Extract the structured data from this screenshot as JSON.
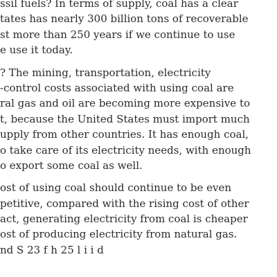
{
  "paragraphs": [
    {
      "lines": [
        "ssil fuels? In terms of supply, coal has a clear",
        "tates has nearly 300 billion tons of recoverable",
        "st more than 250 years if we continue to use",
        "e use it today."
      ]
    },
    {
      "lines": [
        "? The mining, transportation, electricity",
        "-control costs associated with using coal are",
        "ral gas and oil are becoming more expensive to",
        "t, because the United States must import much",
        "upply from other countries.  It has enough coal,",
        "o take care of its electricity needs, with enough",
        "o export some coal as well."
      ]
    },
    {
      "lines": [
        "ost of using coal should continue to be even",
        "petitive, compared with the rising cost of other",
        "act, generating electricity from coal is cheaper",
        "ost of producing electricity from natural gas.",
        "nd S    23   f  h  25 l  i i       d"
      ]
    }
  ]
}
